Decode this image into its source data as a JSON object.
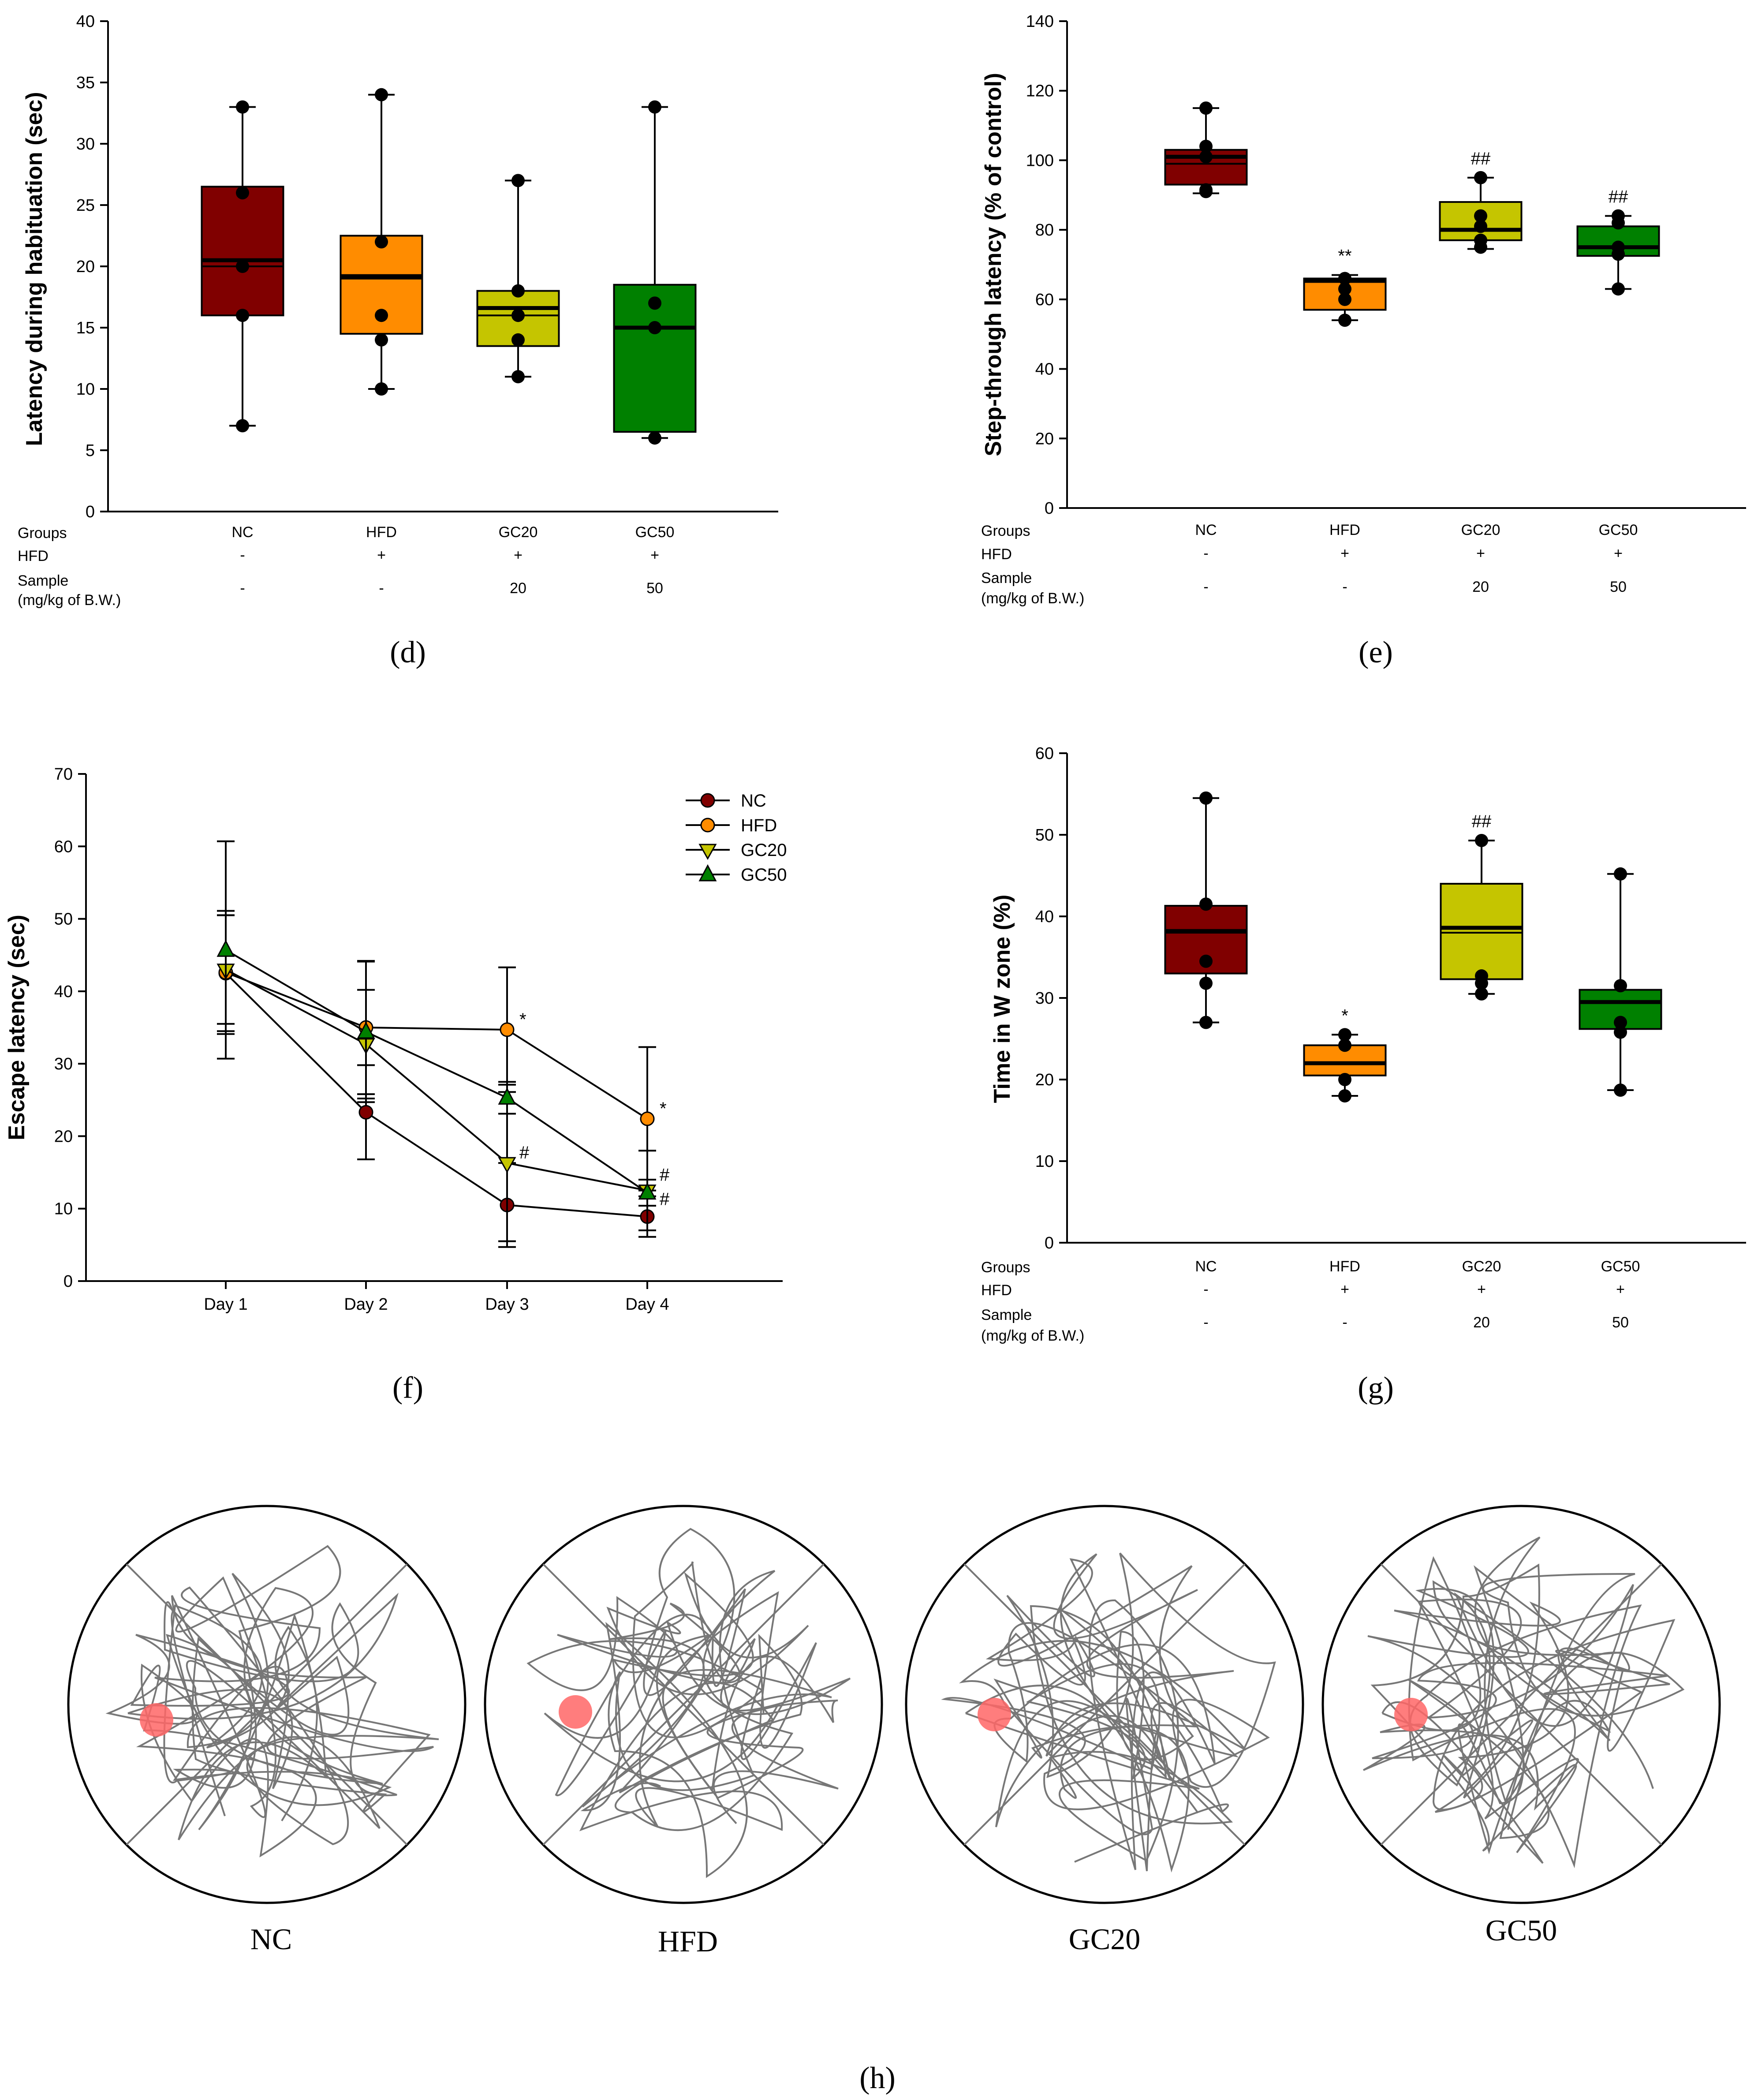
{
  "colors": {
    "NC": "#800000",
    "HFD": "#ff8c00",
    "GC20": "#c5c500",
    "GC50": "#008000",
    "target": "#ff6666"
  },
  "table": {
    "row_labels": [
      "Groups",
      "HFD",
      "Sample",
      "(mg/kg of B.W.)"
    ],
    "groups": [
      "NC",
      "HFD",
      "GC20",
      "GC50"
    ],
    "hfd": [
      "-",
      "+",
      "+",
      "+"
    ],
    "sample": [
      "-",
      "-",
      "20",
      "50"
    ]
  },
  "panels": {
    "d": "(d)",
    "e": "(e)",
    "f": "(f)",
    "g": "(g)",
    "h": "(h)"
  },
  "chart_data": [
    {
      "id": "d",
      "type": "box",
      "ylabel": "Latency during habituation (sec)",
      "ylim": [
        0,
        40
      ],
      "yticks": [
        0,
        5,
        10,
        15,
        20,
        25,
        30,
        35,
        40
      ],
      "categories": [
        "NC",
        "HFD",
        "GC20",
        "GC50"
      ],
      "boxes": [
        {
          "q1": 16,
          "median": 20,
          "mean": 20.5,
          "q3": 26.5,
          "min": 7,
          "max": 33,
          "points": [
            33,
            26,
            20,
            16,
            7
          ],
          "sig": ""
        },
        {
          "q1": 14.5,
          "median": 19,
          "mean": 19.2,
          "q3": 22.5,
          "min": 10,
          "max": 34,
          "points": [
            34,
            22,
            16,
            14,
            10
          ],
          "sig": ""
        },
        {
          "q1": 13.5,
          "median": 16,
          "mean": 16.6,
          "q3": 18,
          "min": 11,
          "max": 27,
          "points": [
            27,
            18,
            16,
            14,
            11
          ],
          "sig": ""
        },
        {
          "q1": 6.5,
          "median": 15,
          "mean": 15,
          "q3": 18.5,
          "min": 6,
          "max": 33,
          "points": [
            33,
            17,
            15,
            6
          ],
          "sig": ""
        }
      ]
    },
    {
      "id": "e",
      "type": "box",
      "ylabel": "Step-through latency (% of control)",
      "ylim": [
        0,
        140
      ],
      "yticks": [
        0,
        20,
        40,
        60,
        80,
        100,
        120,
        140
      ],
      "categories": [
        "NC",
        "HFD",
        "GC20",
        "GC50"
      ],
      "boxes": [
        {
          "q1": 93,
          "median": 99,
          "mean": 101,
          "q3": 103,
          "min": 90.5,
          "max": 115,
          "points": [
            115,
            104,
            101,
            91,
            91.5
          ],
          "sig": ""
        },
        {
          "q1": 57,
          "median": 65,
          "mean": 65.5,
          "q3": 66,
          "min": 54,
          "max": 67,
          "points": [
            66,
            63,
            60,
            54
          ],
          "sig": "**"
        },
        {
          "q1": 77,
          "median": 80,
          "mean": 80,
          "q3": 88,
          "min": 74.5,
          "max": 95,
          "points": [
            95,
            84,
            81,
            77,
            75
          ],
          "sig": "##"
        },
        {
          "q1": 72.5,
          "median": 75,
          "mean": 75,
          "q3": 81,
          "min": 63,
          "max": 84,
          "points": [
            84,
            82,
            75,
            73,
            63
          ],
          "sig": "##"
        }
      ]
    },
    {
      "id": "f",
      "type": "line",
      "ylabel": "Escape latency (sec)",
      "ylim": [
        0,
        70
      ],
      "yticks": [
        0,
        10,
        20,
        30,
        40,
        50,
        60,
        70
      ],
      "x": [
        "Day 1",
        "Day 2",
        "Day 3",
        "Day 4"
      ],
      "legend": "top-right",
      "series": [
        {
          "name": "NC",
          "marker": "circle",
          "values": [
            42.5,
            23.3,
            10.5,
            8.9
          ],
          "err": [
            8.0,
            6.5,
            5.8,
            2.8
          ],
          "sig": [
            "",
            "",
            "",
            ""
          ]
        },
        {
          "name": "HFD",
          "marker": "circle",
          "values": [
            42.6,
            35.0,
            34.7,
            22.4
          ],
          "err": [
            8.5,
            9.2,
            8.6,
            9.9
          ],
          "sig": [
            "",
            "",
            "*",
            "*"
          ]
        },
        {
          "name": "GC20",
          "marker": "triangle-down",
          "values": [
            43.0,
            32.7,
            16.3,
            12.5
          ],
          "err": [
            7.5,
            7.5,
            10.8,
            5.5
          ],
          "sig": [
            "",
            "",
            "#",
            "#"
          ]
        },
        {
          "name": "GC50",
          "marker": "triangle-up",
          "values": [
            45.7,
            34.4,
            25.3,
            12.2
          ],
          "err": [
            15.0,
            9.7,
            2.2,
            1.8
          ],
          "sig": [
            "",
            "",
            "",
            "#"
          ]
        }
      ]
    },
    {
      "id": "g",
      "type": "box",
      "ylabel": "Time in W zone (%)",
      "ylim": [
        0,
        60
      ],
      "yticks": [
        0,
        10,
        20,
        30,
        40,
        50,
        60
      ],
      "categories": [
        "NC",
        "HFD",
        "GC20",
        "GC50"
      ],
      "boxes": [
        {
          "q1": 33,
          "median": 38,
          "mean": 38.2,
          "q3": 41.3,
          "min": 27,
          "max": 54.5,
          "points": [
            54.5,
            41.5,
            34.5,
            31.8,
            27
          ],
          "sig": ""
        },
        {
          "q1": 20.5,
          "median": 22,
          "mean": 22,
          "q3": 24.2,
          "min": 18,
          "max": 25.5,
          "points": [
            25.5,
            24.2,
            20,
            18
          ],
          "sig": "*"
        },
        {
          "q1": 32.3,
          "median": 38,
          "mean": 38.6,
          "q3": 44,
          "min": 30.5,
          "max": 49.3,
          "points": [
            49.3,
            32.7,
            31.8,
            30.5
          ],
          "sig": "##"
        },
        {
          "q1": 26.2,
          "median": 29.5,
          "mean": 29.5,
          "q3": 31,
          "min": 18.7,
          "max": 45.2,
          "points": [
            45.2,
            31.5,
            27,
            25.8,
            18.7
          ],
          "sig": ""
        }
      ]
    }
  ],
  "arenas": [
    "NC",
    "HFD",
    "GC20",
    "GC50"
  ]
}
